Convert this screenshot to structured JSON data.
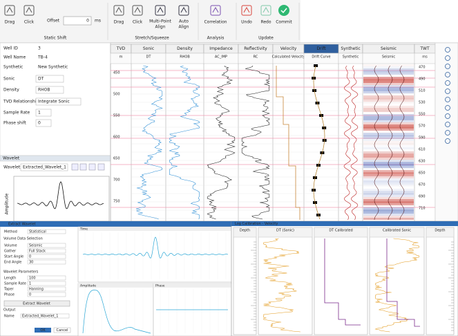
{
  "toolbar": {
    "static_shift": {
      "label": "Static Shift",
      "drag": "Drag",
      "click": "Click",
      "offset_label": "Offset",
      "offset_value": "0",
      "offset_unit": "ms"
    },
    "stretch": {
      "label": "Stretch/Squeeze",
      "drag": "Drag",
      "click": "Click",
      "multi": [
        "Multi-Point",
        "Align"
      ],
      "auto": [
        "Auto",
        "Align"
      ]
    },
    "analysis": {
      "label": "Analysis",
      "correlation": "Correlation"
    },
    "update": {
      "label": "Update",
      "undo": "Undo",
      "redo": "Redo",
      "commit": "Commit"
    }
  },
  "properties": {
    "rows": [
      [
        "Well ID",
        "3"
      ],
      [
        "Well Name",
        "TB-4"
      ],
      [
        "Synthetic",
        "New Synthetic"
      ],
      [
        "Sonic",
        "DT"
      ],
      [
        "Density",
        "RHOB"
      ],
      [
        "TVD Relationship",
        "Integrate Sonic"
      ],
      [
        "Sample Rate",
        "1"
      ],
      [
        "Phase shift",
        "0"
      ]
    ]
  },
  "wavelet_panel": {
    "title": "Wavelet",
    "label": "Wavelet:",
    "value": "Extracted_Wavelet_1",
    "axis": "Amplitude"
  },
  "tracks": [
    {
      "title": "TVD",
      "sub": "m"
    },
    {
      "title": "Sonic",
      "sub": "DT"
    },
    {
      "title": "Density",
      "sub": "RHOB"
    },
    {
      "title": "Impedance",
      "sub": "AC_IMP"
    },
    {
      "title": "Reflectivity",
      "sub": "RC"
    },
    {
      "title": "Velocity",
      "sub": "Calculated Velocity"
    },
    {
      "title": "Drift",
      "sub": "Drift Curve"
    },
    {
      "title": "Synthetic",
      "sub": "Synthetic"
    },
    {
      "title": "Seismic",
      "sub": "Seismic"
    },
    {
      "title": "TWT",
      "sub": "ms"
    }
  ],
  "tvd_labels": [
    "450",
    "500",
    "550",
    "600",
    "650",
    "700",
    "750"
  ],
  "twt_labels": [
    "470",
    "490",
    "510",
    "530",
    "550",
    "570",
    "590",
    "610",
    "630",
    "650",
    "670",
    "690",
    "710"
  ],
  "extract_dialog": {
    "title": "Extract Wavelet",
    "rows": [
      [
        "Method",
        "Statistical"
      ],
      [
        "Volume",
        "Seismic"
      ],
      [
        "Gather",
        "Full Stack"
      ],
      [
        "Start Angle",
        "0"
      ],
      [
        "End Angle",
        "30"
      ],
      [
        "Length",
        "100"
      ],
      [
        "Sample Rate",
        "1"
      ],
      [
        "Taper",
        "Hanning"
      ],
      [
        "Phase",
        "0"
      ]
    ],
    "sections": [
      "Volume Data Selection",
      "Wavelet Parameters",
      "Output"
    ],
    "extract": "Extract Wavelet",
    "name_label": "Name",
    "name_value": "Extracted_Wavelet_1",
    "ok": "OK",
    "cancel": "Cancel",
    "plots": [
      "Time",
      "Amplitude",
      "Phase"
    ]
  },
  "calibration": {
    "title": "Log Calibration - Velocity",
    "tracks": [
      "Depth",
      "DT (Sonic)",
      "DT Calibrated",
      "Calibrated Sonic",
      "Depth"
    ]
  }
}
